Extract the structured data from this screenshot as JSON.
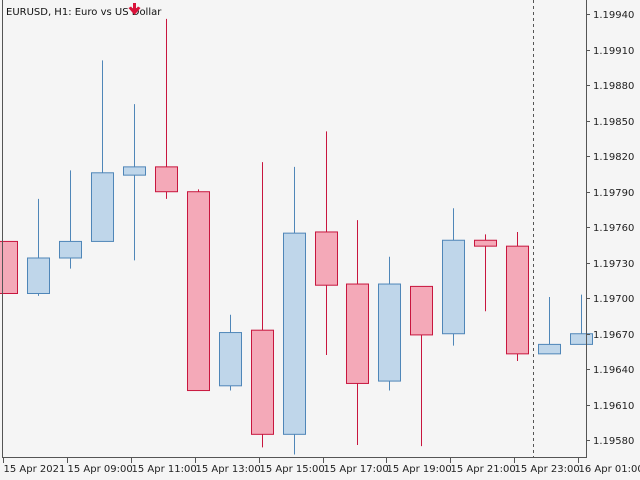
{
  "header": {
    "symbol": "EURUSD",
    "timeframe": "H1",
    "description": "Euro vs US Dollar",
    "title_text": "EURUSD, H1:  Euro vs US Dollar",
    "signal_icon": "down-arrow-icon"
  },
  "colors": {
    "background": "#f5f5f5",
    "axis": "#555555",
    "bull_fill": "#bfd6ea",
    "bull_stroke": "#4f86b8",
    "bear_fill": "#f4a9b8",
    "bear_stroke": "#c8163e",
    "arrow": "#d9133a"
  },
  "chart_data": {
    "type": "candlestick",
    "title": "EURUSD, H1:  Euro vs US Dollar",
    "y_tick_labels": [
      "1.19940",
      "1.19910",
      "1.19880",
      "1.19850",
      "1.19820",
      "1.19790",
      "1.19760",
      "1.19730",
      "1.19700",
      "1.19670",
      "1.19640",
      "1.19610",
      "1.19580"
    ],
    "y_ticks": [
      1.1994,
      1.1991,
      1.1988,
      1.1985,
      1.1982,
      1.1979,
      1.1976,
      1.1973,
      1.197,
      1.1967,
      1.1964,
      1.1961,
      1.1958
    ],
    "ylim": [
      1.19565,
      1.19952
    ],
    "x_tick_labels": [
      "15 Apr 2021",
      "15 Apr 09:00",
      "15 Apr 11:00",
      "15 Apr 13:00",
      "15 Apr 15:00",
      "15 Apr 17:00",
      "15 Apr 19:00",
      "15 Apr 21:00",
      "15 Apr 23:00",
      "16 Apr 01:00"
    ],
    "x_tick_index": [
      0,
      2,
      4,
      6,
      8,
      10,
      12,
      14,
      16,
      18
    ],
    "time_cursor_index": 16.5,
    "arrow_signal_index": 4,
    "candles": [
      {
        "open": 1.19748,
        "high": 1.19748,
        "low": 1.19704,
        "close": 1.19704
      },
      {
        "open": 1.19704,
        "high": 1.19784,
        "low": 1.19702,
        "close": 1.19734
      },
      {
        "open": 1.19734,
        "high": 1.19808,
        "low": 1.19725,
        "close": 1.19748
      },
      {
        "open": 1.19748,
        "high": 1.19901,
        "low": 1.19748,
        "close": 1.19806
      },
      {
        "open": 1.19804,
        "high": 1.19864,
        "low": 1.19732,
        "close": 1.19811
      },
      {
        "open": 1.19811,
        "high": 1.19936,
        "low": 1.19784,
        "close": 1.1979
      },
      {
        "open": 1.1979,
        "high": 1.19792,
        "low": 1.19622,
        "close": 1.19622
      },
      {
        "open": 1.19626,
        "high": 1.19686,
        "low": 1.19622,
        "close": 1.19671
      },
      {
        "open": 1.19673,
        "high": 1.19815,
        "low": 1.19574,
        "close": 1.19585
      },
      {
        "open": 1.19585,
        "high": 1.19811,
        "low": 1.19568,
        "close": 1.19755
      },
      {
        "open": 1.19756,
        "high": 1.19841,
        "low": 1.19652,
        "close": 1.19711
      },
      {
        "open": 1.19712,
        "high": 1.19766,
        "low": 1.19576,
        "close": 1.19628
      },
      {
        "open": 1.1963,
        "high": 1.19735,
        "low": 1.19622,
        "close": 1.19712
      },
      {
        "open": 1.1971,
        "high": 1.1971,
        "low": 1.19575,
        "close": 1.19669
      },
      {
        "open": 1.1967,
        "high": 1.19776,
        "low": 1.1966,
        "close": 1.19749
      },
      {
        "open": 1.19749,
        "high": 1.19754,
        "low": 1.19689,
        "close": 1.19744
      },
      {
        "open": 1.19744,
        "high": 1.19756,
        "low": 1.19647,
        "close": 1.19653
      },
      {
        "open": 1.19653,
        "high": 1.19701,
        "low": 1.19653,
        "close": 1.19661
      },
      {
        "open": 1.19661,
        "high": 1.19703,
        "low": 1.19661,
        "close": 1.1967
      }
    ]
  }
}
